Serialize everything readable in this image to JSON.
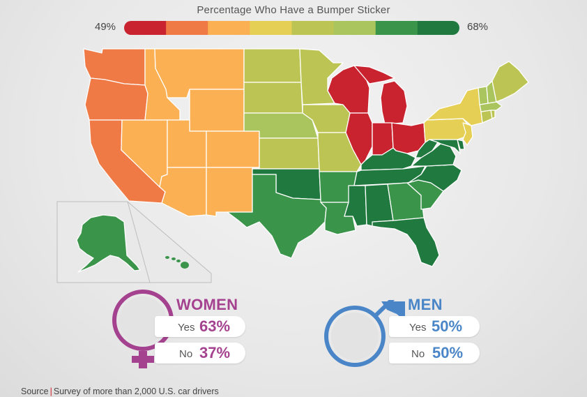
{
  "legend": {
    "title": "Percentage Who Have a Bumper Sticker",
    "min_label": "49%",
    "max_label": "68%",
    "scale_colors": [
      "#c8232f",
      "#ef7a46",
      "#fbb053",
      "#e6cf55",
      "#bcc554",
      "#aac55d",
      "#3a944a",
      "#20793f"
    ]
  },
  "women": {
    "title": "WOMEN",
    "yes_label": "Yes",
    "yes_value": "63%",
    "no_label": "No",
    "no_value": "37%",
    "color": "#a4428f",
    "icon": "female-symbol-icon"
  },
  "men": {
    "title": "MEN",
    "yes_label": "Yes",
    "yes_value": "50%",
    "no_label": "No",
    "no_value": "50%",
    "color": "#4a86c7",
    "icon": "male-symbol-icon"
  },
  "source": {
    "label": "Source",
    "text": "Survey of more than 2,000 U.S. car drivers"
  }
}
